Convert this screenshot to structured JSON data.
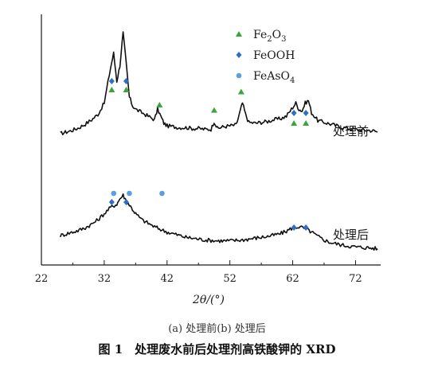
{
  "chart_data": {
    "type": "line",
    "xlabel": "2θ/(°)",
    "ylabel": "",
    "xlim": [
      22,
      76
    ],
    "xticks": [
      22,
      32,
      42,
      52,
      62,
      72
    ],
    "grid": false,
    "legend": {
      "placement": "top-center",
      "entries": [
        {
          "name": "Fe2O3",
          "marker": "triangle",
          "color": "#3aa63a"
        },
        {
          "name": "FeOOH",
          "marker": "diamond",
          "color": "#2c6fc3"
        },
        {
          "name": "FeAsO4",
          "marker": "circle",
          "color": "#5aa0e0"
        }
      ]
    },
    "series": [
      {
        "name": "处理前",
        "x": [
          25,
          26,
          27,
          28,
          29,
          30,
          31,
          32,
          33,
          33.5,
          34,
          34.5,
          35,
          35.5,
          36,
          36.5,
          37,
          38,
          39,
          40,
          40.5,
          41,
          41.5,
          42,
          43,
          44,
          45,
          46,
          47,
          48,
          49,
          49.5,
          50,
          50.5,
          51,
          52,
          53,
          53.5,
          54,
          54.5,
          55,
          56,
          57,
          58,
          59,
          60,
          61,
          62,
          62.5,
          63,
          63.5,
          64,
          64.5,
          65,
          66,
          67,
          68,
          69,
          70,
          71,
          72,
          73,
          74,
          75,
          75.5
        ],
        "y": [
          0.2,
          0.22,
          0.24,
          0.27,
          0.31,
          0.36,
          0.42,
          0.55,
          0.95,
          1.12,
          0.8,
          0.98,
          1.35,
          1.0,
          0.62,
          0.52,
          0.48,
          0.44,
          0.4,
          0.36,
          0.48,
          0.4,
          0.32,
          0.29,
          0.28,
          0.27,
          0.27,
          0.26,
          0.26,
          0.25,
          0.25,
          0.34,
          0.26,
          0.27,
          0.28,
          0.29,
          0.3,
          0.42,
          0.55,
          0.42,
          0.33,
          0.32,
          0.33,
          0.34,
          0.36,
          0.37,
          0.4,
          0.5,
          0.55,
          0.48,
          0.46,
          0.55,
          0.58,
          0.44,
          0.35,
          0.33,
          0.31,
          0.29,
          0.27,
          0.26,
          0.25,
          0.24,
          0.24,
          0.23,
          0.22
        ],
        "peaks": {
          "Fe2O3": [
            33.2,
            35.5,
            40.8,
            49.5,
            53.8,
            62.2,
            64.1
          ],
          "FeOOH": [
            33.2,
            35.5,
            62.2,
            64.1
          ]
        },
        "label": "处理前"
      },
      {
        "name": "处理后",
        "x": [
          25,
          26,
          27,
          28,
          29,
          30,
          31,
          32,
          33,
          34,
          34.5,
          35,
          35.5,
          36,
          36.5,
          37,
          38,
          39,
          40,
          41,
          42,
          43,
          44,
          45,
          46,
          47,
          48,
          50,
          52,
          54,
          56,
          58,
          60,
          61,
          62,
          63,
          64,
          65,
          66,
          67,
          68,
          70,
          72,
          74,
          75.5
        ],
        "y": [
          0.2,
          0.22,
          0.24,
          0.26,
          0.29,
          0.33,
          0.38,
          0.45,
          0.52,
          0.56,
          0.62,
          0.66,
          0.6,
          0.55,
          0.5,
          0.45,
          0.38,
          0.34,
          0.3,
          0.27,
          0.24,
          0.22,
          0.2,
          0.18,
          0.17,
          0.16,
          0.15,
          0.14,
          0.14,
          0.15,
          0.17,
          0.19,
          0.22,
          0.25,
          0.29,
          0.3,
          0.28,
          0.24,
          0.19,
          0.15,
          0.12,
          0.09,
          0.07,
          0.06,
          0.05
        ],
        "peaks": {
          "FeAsO4": [
            33.5,
            36.0,
            41.2
          ],
          "FeOOH": [
            33.2,
            35.5,
            62.2,
            64.1
          ]
        },
        "label": "处理后"
      }
    ]
  },
  "caption": {
    "subtitle": "(a) 处理前(b) 处理后",
    "title": "图 1　处理废水前后处理剂高铁酸钾的 XRD"
  }
}
